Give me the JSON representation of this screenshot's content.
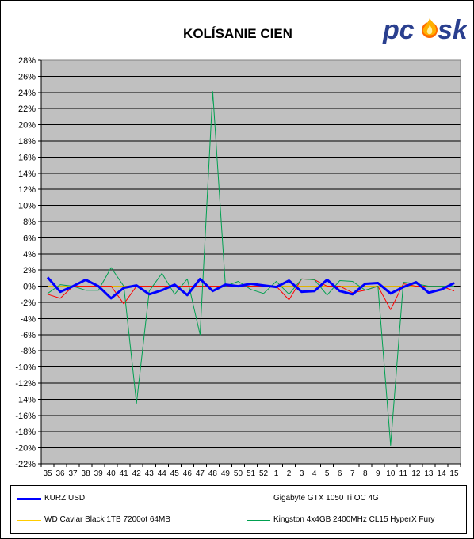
{
  "colors": {
    "plot_bg": "#c0c0c0",
    "kurz": "#0000ff",
    "gigabyte": "#ff0000",
    "wd": "#ffcc00",
    "kingston": "#00a050",
    "logo_text": "#2a3f8f",
    "logo_flame": "#ff6a00"
  },
  "logo": {
    "text_left": "pc",
    "text_right": "sk",
    "icon": "flame-icon"
  },
  "chart_data": {
    "type": "line",
    "title": "KOLÍSANIE CIEN",
    "xlabel": "",
    "ylabel": "",
    "ylim": [
      -22,
      28
    ],
    "ytick_step": 2,
    "grid": true,
    "legend_position": "bottom",
    "categories": [
      "35",
      "36",
      "37",
      "38",
      "39",
      "40",
      "41",
      "42",
      "43",
      "44",
      "45",
      "46",
      "47",
      "48",
      "49",
      "50",
      "51",
      "52",
      "1",
      "2",
      "3",
      "4",
      "5",
      "6",
      "7",
      "8",
      "9",
      "10",
      "11",
      "12",
      "13",
      "14",
      "15"
    ],
    "series": [
      {
        "name": "KURZ USD",
        "color_key": "kurz",
        "values": [
          1.1,
          -0.7,
          0.0,
          0.8,
          0.0,
          -1.5,
          -0.2,
          0.1,
          -1.0,
          -0.5,
          0.2,
          -1.1,
          0.9,
          -0.6,
          0.2,
          0.0,
          0.3,
          0.1,
          -0.1,
          0.7,
          -0.7,
          -0.6,
          0.8,
          -0.6,
          -1.0,
          0.3,
          0.4,
          -0.9,
          -0.1,
          0.5,
          -0.8,
          -0.4,
          0.4
        ]
      },
      {
        "name": "Gigabyte GTX 1050 Ti OC 4G",
        "color_key": "gigabyte",
        "values": [
          -1.0,
          -1.5,
          0.0,
          0.0,
          0.0,
          0.0,
          -2.2,
          0.0,
          0.0,
          0.0,
          0.0,
          0.0,
          0.0,
          0.0,
          0.0,
          0.0,
          0.0,
          0.0,
          0.0,
          -1.7,
          0.9,
          0.8,
          0.0,
          0.0,
          -0.8,
          -0.5,
          0.0,
          -2.9,
          0.3,
          0.0,
          0.0,
          0.0,
          -0.6
        ]
      },
      {
        "name": "WD Caviar Black 1TB 7200ot 64MB",
        "color_key": "wd",
        "values": [
          0.0,
          0.0,
          0.0,
          0.0,
          0.0,
          0.0,
          0.0,
          0.0,
          0.0,
          0.0,
          0.0,
          0.0,
          0.0,
          0.0,
          0.0,
          0.0,
          0.0,
          0.0,
          0.0,
          0.0,
          0.0,
          0.0,
          0.0,
          0.0,
          0.0,
          0.0,
          0.0,
          0.0,
          0.0,
          0.0,
          0.0,
          0.0,
          0.0
        ]
      },
      {
        "name": "Kingston 4x4GB 2400MHz CL15 HyperX Fury",
        "color_key": "kingston",
        "values": [
          -0.9,
          0.2,
          0.0,
          -0.5,
          -0.5,
          2.3,
          0.0,
          -14.5,
          -0.6,
          1.6,
          -1.0,
          0.9,
          -6.0,
          24.1,
          0.0,
          0.6,
          -0.4,
          -0.9,
          0.6,
          -1.0,
          0.9,
          0.8,
          -1.1,
          0.7,
          0.6,
          -0.5,
          0.0,
          -19.7,
          0.5,
          0.3,
          0.0,
          0.0,
          0.0
        ]
      }
    ]
  },
  "legend": {
    "items": [
      {
        "label": "KURZ USD"
      },
      {
        "label": "Gigabyte GTX 1050 Ti OC 4G"
      },
      {
        "label": "WD Caviar Black 1TB 7200ot 64MB"
      },
      {
        "label": "Kingston 4x4GB 2400MHz CL15 HyperX Fury"
      }
    ]
  }
}
